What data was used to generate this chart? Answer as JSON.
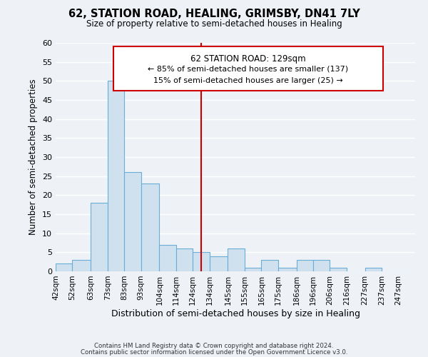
{
  "title": "62, STATION ROAD, HEALING, GRIMSBY, DN41 7LY",
  "subtitle": "Size of property relative to semi-detached houses in Healing",
  "xlabel": "Distribution of semi-detached houses by size in Healing",
  "ylabel": "Number of semi-detached properties",
  "bin_labels": [
    "42sqm",
    "52sqm",
    "63sqm",
    "73sqm",
    "83sqm",
    "93sqm",
    "104sqm",
    "114sqm",
    "124sqm",
    "134sqm",
    "145sqm",
    "155sqm",
    "165sqm",
    "175sqm",
    "186sqm",
    "196sqm",
    "206sqm",
    "216sqm",
    "227sqm",
    "237sqm",
    "247sqm"
  ],
  "bin_edges": [
    42,
    52,
    63,
    73,
    83,
    93,
    104,
    114,
    124,
    134,
    145,
    155,
    165,
    175,
    186,
    196,
    206,
    216,
    227,
    237,
    247
  ],
  "bar_heights": [
    2,
    3,
    18,
    50,
    26,
    23,
    7,
    6,
    5,
    4,
    6,
    1,
    3,
    1,
    3,
    3,
    1,
    0,
    1,
    0,
    0
  ],
  "bar_color": "#cfe0ef",
  "bar_edge_color": "#6aadd5",
  "property_line_x": 129,
  "property_line_color": "#cc0000",
  "annotation_title": "62 STATION ROAD: 129sqm",
  "annotation_line1": "← 85% of semi-detached houses are smaller (137)",
  "annotation_line2": "15% of semi-detached houses are larger (25) →",
  "annotation_box_color": "#ffffff",
  "annotation_box_edge": "#cc0000",
  "ylim": [
    0,
    60
  ],
  "yticks": [
    0,
    5,
    10,
    15,
    20,
    25,
    30,
    35,
    40,
    45,
    50,
    55,
    60
  ],
  "footer1": "Contains HM Land Registry data © Crown copyright and database right 2024.",
  "footer2": "Contains public sector information licensed under the Open Government Licence v3.0.",
  "background_color": "#eef2f7",
  "grid_color": "#ffffff"
}
